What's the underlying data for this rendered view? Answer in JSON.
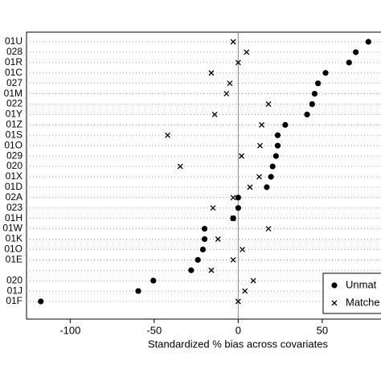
{
  "chart_data": {
    "type": "dot",
    "x_label": "Standardized % bias across covariates",
    "categories": [
      "01U",
      "028",
      "01R",
      "01C",
      "027",
      "01M",
      "022",
      "01Y",
      "01Z",
      "01S",
      "01O",
      "029",
      "020",
      "01X",
      "01D",
      "02A",
      "023",
      "01H",
      "01W",
      "01K",
      "01O",
      "01E",
      null,
      "020",
      "01J",
      "01F"
    ],
    "series": [
      {
        "name": "Unmat",
        "marker": "dot",
        "color": "#000000",
        "values": [
          77.5,
          70,
          66,
          52,
          47.5,
          45.5,
          44,
          41,
          28,
          23.5,
          23.5,
          22.5,
          20.5,
          19.5,
          17,
          0,
          0,
          -3,
          -20,
          -20,
          -21,
          -24,
          -28,
          -50.5,
          -59.5,
          -117.5
        ]
      },
      {
        "name": "Matche",
        "marker": "x",
        "color": "#000000",
        "values": [
          -3,
          5,
          0,
          -16,
          -5,
          -7,
          18,
          -14,
          14,
          -42,
          13,
          2,
          -34.5,
          12.5,
          7,
          -3,
          -15,
          -3,
          18,
          -12,
          2.5,
          -3,
          -16,
          9,
          4,
          0
        ]
      }
    ],
    "xlim": [
      -126,
      85
    ],
    "xticks": [
      -100,
      -50,
      0,
      50
    ],
    "xline": 0,
    "grid": true
  }
}
